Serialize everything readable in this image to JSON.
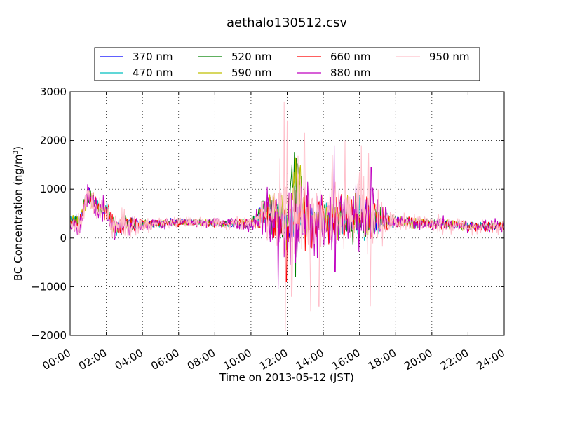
{
  "chart_data": {
    "type": "line",
    "title": "aethalo130512.csv",
    "xlabel": "Time on 2013-05-12 (JST)",
    "ylabel_main": "BC Concentration (ng/m",
    "ylabel_sup": "3",
    "ylabel_close": ")",
    "xlim": [
      0,
      24
    ],
    "ylim": [
      -2000,
      3000
    ],
    "grid": true,
    "legend_position": "top",
    "x_ticks": [
      {
        "value": 0,
        "label": "00:00"
      },
      {
        "value": 2,
        "label": "02:00"
      },
      {
        "value": 4,
        "label": "04:00"
      },
      {
        "value": 6,
        "label": "06:00"
      },
      {
        "value": 8,
        "label": "08:00"
      },
      {
        "value": 10,
        "label": "10:00"
      },
      {
        "value": 12,
        "label": "12:00"
      },
      {
        "value": 14,
        "label": "14:00"
      },
      {
        "value": 16,
        "label": "16:00"
      },
      {
        "value": 18,
        "label": "18:00"
      },
      {
        "value": 20,
        "label": "20:00"
      },
      {
        "value": 22,
        "label": "22:00"
      },
      {
        "value": 24,
        "label": "24:00"
      }
    ],
    "y_ticks": [
      {
        "value": 3000,
        "label": "3000"
      },
      {
        "value": 2000,
        "label": "2000"
      },
      {
        "value": 1000,
        "label": "1000"
      },
      {
        "value": 0,
        "label": "0"
      },
      {
        "value": -1000,
        "label": "−1000"
      },
      {
        "value": -2000,
        "label": "−2000"
      }
    ],
    "series": [
      {
        "name": "370 nm",
        "color": "#0000ff",
        "amp_scale": 0.65,
        "seed": 11,
        "x": [
          0,
          0.5,
          1,
          1.5,
          2,
          2.5,
          3,
          4,
          6,
          8,
          10,
          11,
          12,
          13,
          14,
          15,
          16,
          17,
          18,
          20,
          22,
          24
        ],
        "values": [
          450,
          350,
          950,
          600,
          550,
          150,
          300,
          280,
          340,
          280,
          300,
          550,
          300,
          350,
          350,
          400,
          450,
          350,
          350,
          300,
          250,
          240
        ]
      },
      {
        "name": "470 nm",
        "color": "#00bfbf",
        "amp_scale": 0.7,
        "seed": 23,
        "x": [
          0,
          0.5,
          1,
          1.5,
          2,
          2.5,
          3,
          4,
          6,
          8,
          10,
          11,
          12,
          13,
          14,
          15,
          16,
          17,
          18,
          20,
          22,
          24
        ],
        "values": [
          400,
          330,
          930,
          650,
          600,
          170,
          300,
          270,
          330,
          290,
          300,
          560,
          350,
          380,
          370,
          380,
          420,
          350,
          330,
          300,
          250,
          240
        ]
      },
      {
        "name": "520 nm",
        "color": "#008000",
        "amp_scale": 0.8,
        "seed": 37,
        "x": [
          0,
          0.5,
          1,
          1.5,
          2,
          2.5,
          3,
          4,
          6,
          8,
          10,
          11,
          12,
          12.5,
          13,
          14,
          15,
          16,
          17,
          18,
          20,
          22,
          24
        ],
        "values": [
          380,
          320,
          900,
          620,
          580,
          180,
          290,
          280,
          330,
          300,
          300,
          580,
          350,
          1650,
          380,
          360,
          400,
          420,
          360,
          330,
          300,
          250,
          240
        ]
      },
      {
        "name": "590 nm",
        "color": "#bfbf00",
        "amp_scale": 0.8,
        "seed": 41,
        "x": [
          0,
          0.5,
          1,
          1.5,
          2,
          2.5,
          3,
          4,
          6,
          8,
          10,
          11,
          12,
          12.5,
          13,
          14,
          15,
          16,
          17,
          18,
          20,
          22,
          24
        ],
        "values": [
          370,
          320,
          900,
          630,
          580,
          180,
          290,
          280,
          330,
          300,
          300,
          570,
          350,
          1300,
          400,
          370,
          410,
          430,
          360,
          330,
          300,
          250,
          240
        ]
      },
      {
        "name": "660 nm",
        "color": "#ff0000",
        "amp_scale": 0.95,
        "seed": 53,
        "x": [
          0,
          0.5,
          1,
          1.5,
          2,
          2.5,
          3,
          4,
          6,
          8,
          10,
          11,
          12,
          13,
          14,
          15,
          16,
          17,
          18,
          20,
          22,
          24
        ],
        "values": [
          350,
          310,
          900,
          620,
          560,
          190,
          290,
          280,
          330,
          300,
          300,
          560,
          350,
          400,
          380,
          410,
          430,
          360,
          330,
          300,
          250,
          240
        ]
      },
      {
        "name": "880 nm",
        "color": "#bf00bf",
        "amp_scale": 1.25,
        "seed": 67,
        "x": [
          0,
          0.5,
          1,
          1.5,
          2,
          2.5,
          3,
          4,
          6,
          8,
          10,
          11,
          12,
          13,
          14,
          15,
          16,
          17,
          18,
          20,
          22,
          24
        ],
        "values": [
          300,
          280,
          850,
          600,
          550,
          170,
          280,
          270,
          330,
          300,
          300,
          550,
          300,
          450,
          400,
          450,
          480,
          380,
          330,
          300,
          250,
          240
        ]
      },
      {
        "name": "950 nm",
        "color": "#ffc0cb",
        "amp_scale": 1.55,
        "seed": 79,
        "x": [
          0,
          0.5,
          1,
          1.5,
          2,
          2.5,
          3,
          4,
          6,
          8,
          10,
          11,
          12,
          13,
          14,
          15,
          16,
          17,
          18,
          20,
          22,
          24
        ],
        "values": [
          320,
          290,
          870,
          610,
          560,
          180,
          280,
          270,
          330,
          300,
          300,
          560,
          350,
          450,
          420,
          460,
          480,
          390,
          340,
          300,
          250,
          240
        ]
      }
    ],
    "noise_profile": {
      "x": [
        0,
        1,
        2,
        3,
        4,
        7,
        10,
        10.7,
        11.5,
        12.3,
        13,
        14,
        15,
        16,
        16.8,
        17.5,
        18,
        20,
        24
      ],
      "amplitude": [
        130,
        200,
        180,
        220,
        110,
        70,
        100,
        300,
        600,
        700,
        520,
        480,
        420,
        560,
        420,
        220,
        130,
        110,
        100
      ]
    },
    "spikes": [
      {
        "series": "950 nm",
        "x": 11.83,
        "value": 2800
      },
      {
        "series": "950 nm",
        "x": 11.9,
        "value": -1900
      },
      {
        "series": "950 nm",
        "x": 12.0,
        "value": 2400
      },
      {
        "series": "950 nm",
        "x": 12.25,
        "value": -1200
      },
      {
        "series": "950 nm",
        "x": 12.95,
        "value": 2150
      },
      {
        "series": "950 nm",
        "x": 13.3,
        "value": -1500
      },
      {
        "series": "950 nm",
        "x": 13.75,
        "value": -1400
      },
      {
        "series": "950 nm",
        "x": 14.5,
        "value": 1700
      },
      {
        "series": "950 nm",
        "x": 15.2,
        "value": 2000
      },
      {
        "series": "950 nm",
        "x": 16.5,
        "value": 1750
      },
      {
        "series": "950 nm",
        "x": 16.6,
        "value": -1400
      },
      {
        "series": "950 nm",
        "x": 16.1,
        "value": 1900
      },
      {
        "series": "880 nm",
        "x": 14.6,
        "value": 1900
      },
      {
        "series": "880 nm",
        "x": 14.65,
        "value": -700
      },
      {
        "series": "880 nm",
        "x": 16.65,
        "value": 1450
      },
      {
        "series": "880 nm",
        "x": 11.5,
        "value": -1050
      },
      {
        "series": "520 nm",
        "x": 12.5,
        "value": 1650
      },
      {
        "series": "520 nm",
        "x": 12.45,
        "value": -800
      },
      {
        "series": "660 nm",
        "x": 11.95,
        "value": -900
      }
    ]
  }
}
